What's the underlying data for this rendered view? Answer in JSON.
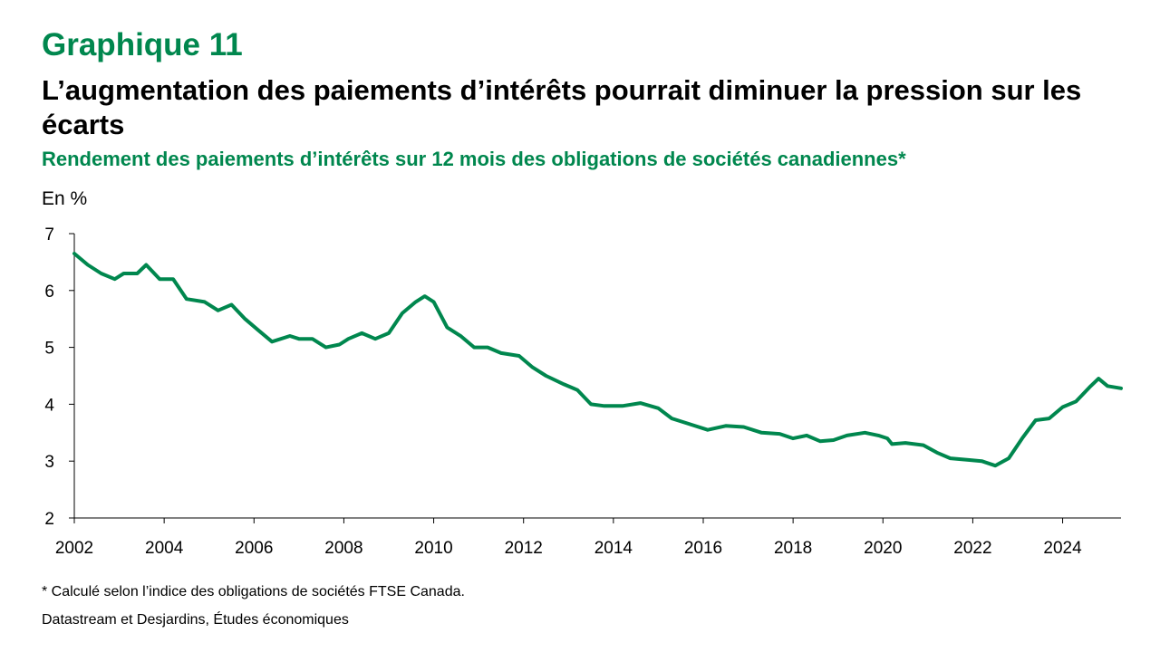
{
  "header": {
    "graph_label": "Graphique 11",
    "title": "L’augmentation des paiements d’intérêts pourrait diminuer la pression sur les écarts",
    "subtitle": "Rendement des paiements d’intérêts sur 12 mois des obligations de sociétés canadiennes*"
  },
  "footer": {
    "footnote": "* Calculé selon l’indice des obligations de sociétés FTSE Canada.",
    "source": "Datastream et Desjardins, Études économiques"
  },
  "colors": {
    "accent": "#00874E",
    "line": "#00874E",
    "text": "#000000",
    "axis": "#000000"
  },
  "chart_data": {
    "type": "line",
    "title": "",
    "ylabel": "En %",
    "xlabel": "",
    "xlim": [
      2002,
      2025.3
    ],
    "ylim": [
      2,
      7
    ],
    "yticks": [
      "2",
      "3",
      "4",
      "5",
      "6",
      "7"
    ],
    "xticks": [
      "2002",
      "2004",
      "2006",
      "2008",
      "2010",
      "2012",
      "2014",
      "2016",
      "2018",
      "2020",
      "2022",
      "2024"
    ],
    "grid": false,
    "legend": "none",
    "series": [
      {
        "name": "",
        "x": [
          2002.0,
          2002.3,
          2002.6,
          2002.9,
          2003.1,
          2003.4,
          2003.6,
          2003.9,
          2004.2,
          2004.5,
          2004.9,
          2005.2,
          2005.5,
          2005.8,
          2006.1,
          2006.4,
          2006.8,
          2007.0,
          2007.3,
          2007.6,
          2007.9,
          2008.1,
          2008.4,
          2008.7,
          2009.0,
          2009.3,
          2009.6,
          2009.8,
          2010.0,
          2010.3,
          2010.6,
          2010.9,
          2011.2,
          2011.5,
          2011.9,
          2012.2,
          2012.5,
          2012.9,
          2013.2,
          2013.5,
          2013.8,
          2014.2,
          2014.6,
          2015.0,
          2015.3,
          2015.7,
          2016.1,
          2016.5,
          2016.9,
          2017.3,
          2017.7,
          2018.0,
          2018.3,
          2018.6,
          2018.9,
          2019.2,
          2019.6,
          2019.9,
          2020.1,
          2020.2,
          2020.5,
          2020.9,
          2021.2,
          2021.5,
          2021.9,
          2022.2,
          2022.5,
          2022.8,
          2023.1,
          2023.4,
          2023.7,
          2024.0,
          2024.3,
          2024.6,
          2024.8,
          2025.0,
          2025.3
        ],
        "values": [
          6.65,
          6.45,
          6.3,
          6.2,
          6.3,
          6.3,
          6.45,
          6.2,
          6.2,
          5.85,
          5.8,
          5.65,
          5.75,
          5.5,
          5.3,
          5.1,
          5.2,
          5.15,
          5.15,
          5.0,
          5.05,
          5.15,
          5.25,
          5.15,
          5.25,
          5.6,
          5.8,
          5.9,
          5.8,
          5.35,
          5.2,
          5.0,
          5.0,
          4.9,
          4.85,
          4.65,
          4.5,
          4.35,
          4.25,
          4.0,
          3.97,
          3.97,
          4.02,
          3.93,
          3.75,
          3.65,
          3.55,
          3.62,
          3.6,
          3.5,
          3.48,
          3.4,
          3.45,
          3.35,
          3.37,
          3.45,
          3.5,
          3.45,
          3.4,
          3.3,
          3.32,
          3.28,
          3.15,
          3.05,
          3.02,
          3.0,
          2.92,
          3.05,
          3.4,
          3.72,
          3.75,
          3.95,
          4.05,
          4.3,
          4.45,
          4.32,
          4.28
        ]
      }
    ]
  }
}
